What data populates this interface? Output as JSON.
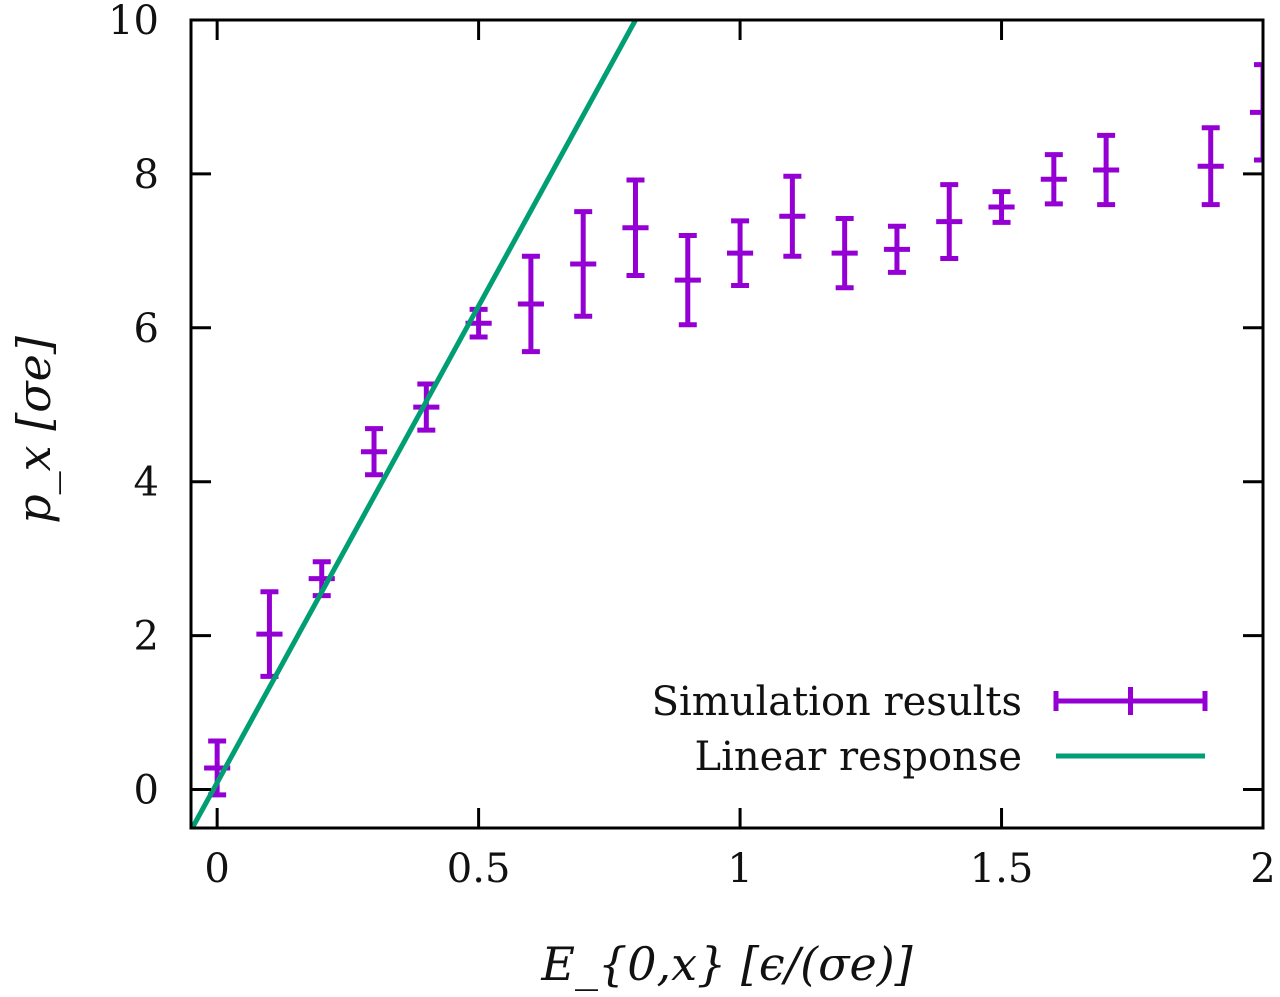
{
  "chart_data": {
    "type": "scatter",
    "title": "",
    "xlabel": "E_{0,x} [ϵ/(σe)]",
    "ylabel": "p_x [σe]",
    "xlim": [
      -0.05,
      2.0
    ],
    "ylim": [
      -0.5,
      10
    ],
    "xticks": [
      0,
      0.5,
      1,
      1.5,
      2
    ],
    "xtick_labels": [
      "0",
      "0.5",
      "1",
      "1.5",
      "2"
    ],
    "yticks": [
      0,
      2,
      4,
      6,
      8,
      10
    ],
    "ytick_labels": [
      "0",
      "2",
      "4",
      "6",
      "8",
      "10"
    ],
    "grid": false,
    "legend_position": "bottom-right",
    "series": [
      {
        "name": "Simulation results",
        "kind": "errorbar",
        "color": "#9400d3",
        "x": [
          0,
          0.1,
          0.2,
          0.3,
          0.4,
          0.5,
          0.6,
          0.7,
          0.8,
          0.9,
          1.0,
          1.1,
          1.2,
          1.3,
          1.4,
          1.5,
          1.6,
          1.7,
          1.9,
          2.0
        ],
        "y": [
          0.28,
          2.02,
          2.74,
          4.39,
          4.97,
          6.06,
          6.31,
          6.83,
          7.3,
          6.62,
          6.97,
          7.45,
          6.97,
          7.02,
          7.38,
          7.57,
          7.93,
          8.05,
          8.1,
          8.8
        ],
        "yerr": [
          0.35,
          0.55,
          0.22,
          0.3,
          0.3,
          0.18,
          0.62,
          0.68,
          0.62,
          0.58,
          0.42,
          0.52,
          0.45,
          0.3,
          0.48,
          0.2,
          0.32,
          0.45,
          0.5,
          0.62
        ],
        "xerr": 0.025
      },
      {
        "name": "Linear response",
        "kind": "line",
        "color": "#009e73",
        "x": [
          -0.05,
          0.8
        ],
        "y": [
          -0.53,
          10.0
        ]
      }
    ]
  }
}
